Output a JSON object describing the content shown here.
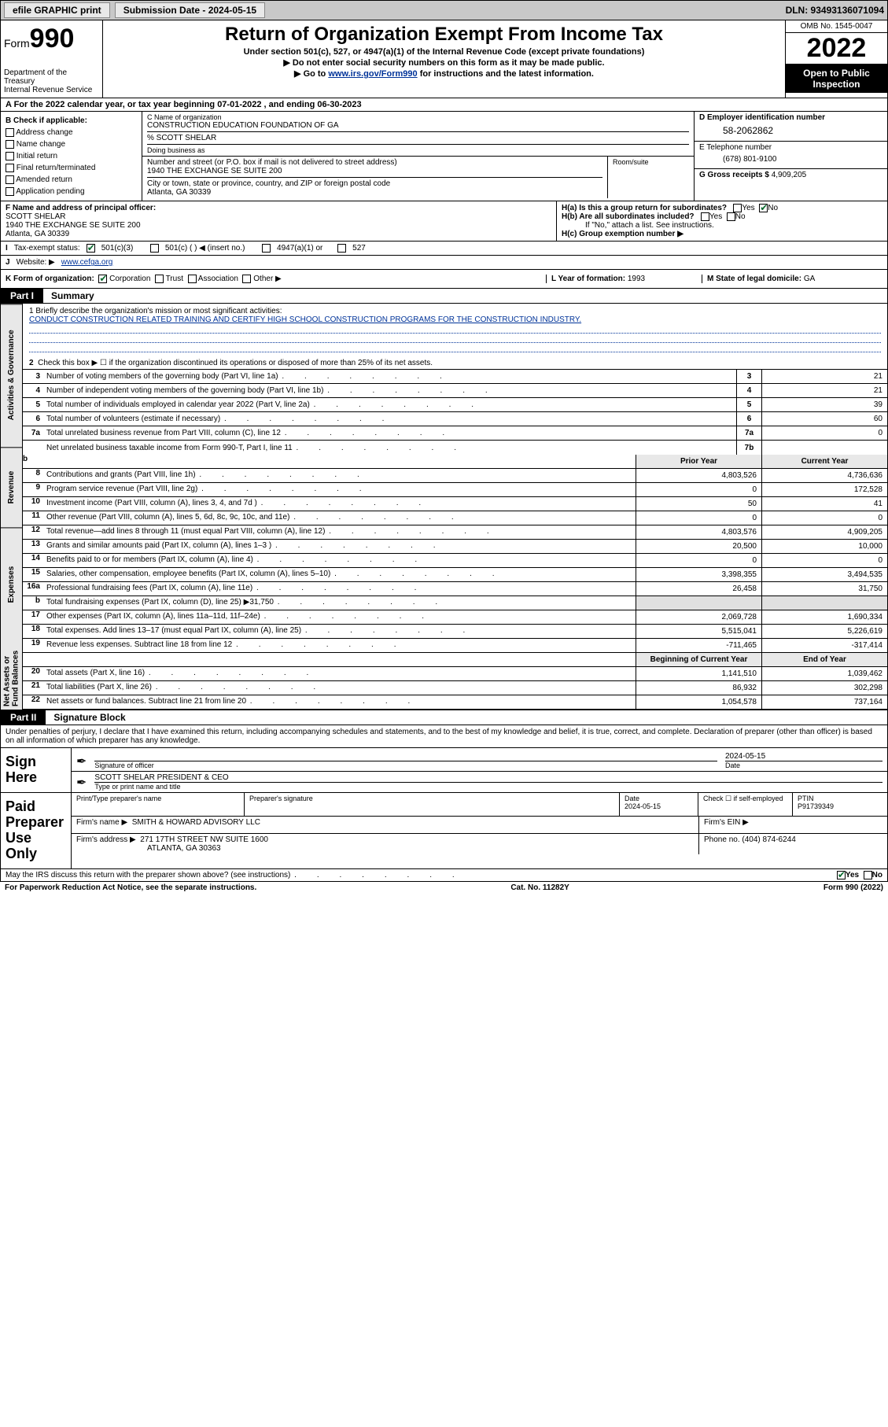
{
  "topbar": {
    "print_label": "efile GRAPHIC print",
    "submission_label": "Submission Date - 2024-05-15",
    "dln_label": "DLN: 93493136071094"
  },
  "header": {
    "form_prefix": "Form",
    "form_number": "990",
    "title": "Return of Organization Exempt From Income Tax",
    "subtitle1": "Under section 501(c), 527, or 4947(a)(1) of the Internal Revenue Code (except private foundations)",
    "subtitle2": "▶ Do not enter social security numbers on this form as it may be made public.",
    "subtitle3_pre": "▶ Go to ",
    "subtitle3_link": "www.irs.gov/Form990",
    "subtitle3_post": " for instructions and the latest information.",
    "dept": "Department of the Treasury",
    "irs": "Internal Revenue Service",
    "omb": "OMB No. 1545-0047",
    "year": "2022",
    "open_public": "Open to Public Inspection"
  },
  "rowA": "A For the 2022 calendar year, or tax year beginning 07-01-2022   , and ending 06-30-2023",
  "colB": {
    "title": "B Check if applicable:",
    "items": [
      "Address change",
      "Name change",
      "Initial return",
      "Final return/terminated",
      "Amended return",
      "Application pending"
    ]
  },
  "colC": {
    "name_lbl": "C Name of organization",
    "name": "CONSTRUCTION EDUCATION FOUNDATION OF GA",
    "pct": "% SCOTT SHELAR",
    "dba_lbl": "Doing business as",
    "addr_lbl": "Number and street (or P.O. box if mail is not delivered to street address)",
    "room_lbl": "Room/suite",
    "addr": "1940 THE EXCHANGE SE SUITE 200",
    "city_lbl": "City or town, state or province, country, and ZIP or foreign postal code",
    "city": "Atlanta, GA  30339"
  },
  "colD": {
    "lbl": "D Employer identification number",
    "val": "58-2062862"
  },
  "colE": {
    "lbl": "E Telephone number",
    "val": "(678) 801-9100"
  },
  "colG": {
    "lbl": "G Gross receipts $",
    "val": "4,909,205"
  },
  "colF": {
    "lbl": "F Name and address of principal officer:",
    "name": "SCOTT SHELAR",
    "addr1": "1940 THE EXCHANGE SE SUITE 200",
    "addr2": "Atlanta, GA  30339"
  },
  "colH": {
    "ha": "H(a)  Is this a group return for subordinates?",
    "hb": "H(b)  Are all subordinates included?",
    "hb2": "If \"No,\" attach a list. See instructions.",
    "hc": "H(c)  Group exemption number ▶",
    "yes": "Yes",
    "no": "No"
  },
  "rowI": {
    "lbl": "Tax-exempt status:",
    "opts": [
      "501(c)(3)",
      "501(c) (  ) ◀ (insert no.)",
      "4947(a)(1) or",
      "527"
    ]
  },
  "rowJ": {
    "lbl": "Website: ▶",
    "val": "www.cefga.org"
  },
  "rowK": {
    "lbl": "K Form of organization:",
    "opts": [
      "Corporation",
      "Trust",
      "Association",
      "Other ▶"
    ]
  },
  "rowL": {
    "lbl": "L Year of formation:",
    "val": "1993"
  },
  "rowM": {
    "lbl": "M State of legal domicile:",
    "val": "GA"
  },
  "part1": {
    "label": "Part I",
    "title": "Summary"
  },
  "mission": {
    "q": "1  Briefly describe the organization's mission or most significant activities:",
    "text": "CONDUCT CONSTRUCTION RELATED TRAINING AND CERTIFY HIGH SCHOOL CONSTRUCTION PROGRAMS FOR THE CONSTRUCTION INDUSTRY."
  },
  "line2": "Check this box ▶ ☐  if the organization discontinued its operations or disposed of more than 25% of its net assets.",
  "tabs": {
    "gov": "Activities & Governance",
    "rev": "Revenue",
    "exp": "Expenses",
    "net": "Net Assets or Fund Balances"
  },
  "gov_rows": [
    {
      "n": "3",
      "d": "Number of voting members of the governing body (Part VI, line 1a)",
      "bn": "3",
      "bv": "21"
    },
    {
      "n": "4",
      "d": "Number of independent voting members of the governing body (Part VI, line 1b)",
      "bn": "4",
      "bv": "21"
    },
    {
      "n": "5",
      "d": "Total number of individuals employed in calendar year 2022 (Part V, line 2a)",
      "bn": "5",
      "bv": "39"
    },
    {
      "n": "6",
      "d": "Total number of volunteers (estimate if necessary)",
      "bn": "6",
      "bv": "60"
    },
    {
      "n": "7a",
      "d": "Total unrelated business revenue from Part VIII, column (C), line 12",
      "bn": "7a",
      "bv": "0"
    },
    {
      "n": "",
      "d": "Net unrelated business taxable income from Form 990-T, Part I, line 11",
      "bn": "7b",
      "bv": ""
    }
  ],
  "hdr_py": "Prior Year",
  "hdr_cy": "Current Year",
  "rev_rows": [
    {
      "n": "8",
      "d": "Contributions and grants (Part VIII, line 1h)",
      "py": "4,803,526",
      "cy": "4,736,636"
    },
    {
      "n": "9",
      "d": "Program service revenue (Part VIII, line 2g)",
      "py": "0",
      "cy": "172,528"
    },
    {
      "n": "10",
      "d": "Investment income (Part VIII, column (A), lines 3, 4, and 7d )",
      "py": "50",
      "cy": "41"
    },
    {
      "n": "11",
      "d": "Other revenue (Part VIII, column (A), lines 5, 6d, 8c, 9c, 10c, and 11e)",
      "py": "0",
      "cy": "0"
    },
    {
      "n": "12",
      "d": "Total revenue—add lines 8 through 11 (must equal Part VIII, column (A), line 12)",
      "py": "4,803,576",
      "cy": "4,909,205"
    }
  ],
  "exp_rows": [
    {
      "n": "13",
      "d": "Grants and similar amounts paid (Part IX, column (A), lines 1–3 )",
      "py": "20,500",
      "cy": "10,000"
    },
    {
      "n": "14",
      "d": "Benefits paid to or for members (Part IX, column (A), line 4)",
      "py": "0",
      "cy": "0"
    },
    {
      "n": "15",
      "d": "Salaries, other compensation, employee benefits (Part IX, column (A), lines 5–10)",
      "py": "3,398,355",
      "cy": "3,494,535"
    },
    {
      "n": "16a",
      "d": "Professional fundraising fees (Part IX, column (A), line 11e)",
      "py": "26,458",
      "cy": "31,750"
    },
    {
      "n": "b",
      "d": "Total fundraising expenses (Part IX, column (D), line 25) ▶31,750",
      "py": "",
      "cy": "",
      "gray": true
    },
    {
      "n": "17",
      "d": "Other expenses (Part IX, column (A), lines 11a–11d, 11f–24e)",
      "py": "2,069,728",
      "cy": "1,690,334"
    },
    {
      "n": "18",
      "d": "Total expenses. Add lines 13–17 (must equal Part IX, column (A), line 25)",
      "py": "5,515,041",
      "cy": "5,226,619"
    },
    {
      "n": "19",
      "d": "Revenue less expenses. Subtract line 18 from line 12",
      "py": "-711,465",
      "cy": "-317,414"
    }
  ],
  "hdr_bcy": "Beginning of Current Year",
  "hdr_eoy": "End of Year",
  "net_rows": [
    {
      "n": "20",
      "d": "Total assets (Part X, line 16)",
      "py": "1,141,510",
      "cy": "1,039,462"
    },
    {
      "n": "21",
      "d": "Total liabilities (Part X, line 26)",
      "py": "86,932",
      "cy": "302,298"
    },
    {
      "n": "22",
      "d": "Net assets or fund balances. Subtract line 21 from line 20",
      "py": "1,054,578",
      "cy": "737,164"
    }
  ],
  "part2": {
    "label": "Part II",
    "title": "Signature Block"
  },
  "sig_intro": "Under penalties of perjury, I declare that I have examined this return, including accompanying schedules and statements, and to the best of my knowledge and belief, it is true, correct, and complete. Declaration of preparer (other than officer) is based on all information of which preparer has any knowledge.",
  "sign_here": "Sign Here",
  "sig": {
    "sig_lbl": "Signature of officer",
    "date_lbl": "Date",
    "date": "2024-05-15",
    "name": "SCOTT SHELAR  PRESIDENT & CEO",
    "name_lbl": "Type or print name and title"
  },
  "prep_here": "Paid Preparer Use Only",
  "prep": {
    "c1_lbl": "Print/Type preparer's name",
    "c2_lbl": "Preparer's signature",
    "c3_lbl": "Date",
    "c3_val": "2024-05-15",
    "c4_lbl": "Check ☐ if self-employed",
    "c5_lbl": "PTIN",
    "c5_val": "P91739349",
    "firm_name_lbl": "Firm's name    ▶",
    "firm_name": "SMITH & HOWARD ADVISORY LLC",
    "firm_ein_lbl": "Firm's EIN ▶",
    "firm_addr_lbl": "Firm's address ▶",
    "firm_addr1": "271 17TH STREET NW SUITE 1600",
    "firm_addr2": "ATLANTA, GA  30363",
    "phone_lbl": "Phone no.",
    "phone": "(404) 874-6244"
  },
  "discuss": "May the IRS discuss this return with the preparer shown above? (see instructions)",
  "discuss_yes": "Yes",
  "discuss_no": "No",
  "bottom": {
    "pra": "For Paperwork Reduction Act Notice, see the separate instructions.",
    "cat": "Cat. No. 11282Y",
    "form": "Form 990 (2022)"
  }
}
